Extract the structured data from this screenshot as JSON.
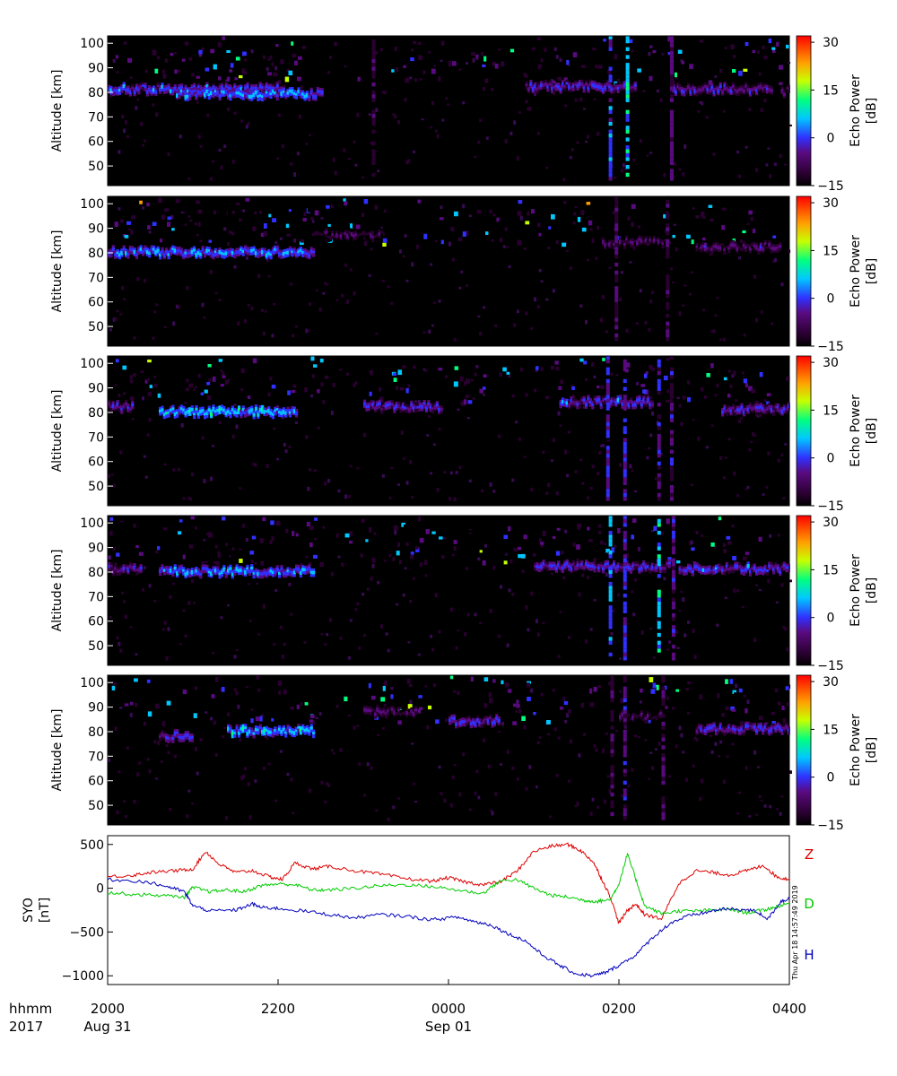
{
  "chart_data": [
    {
      "type": "heatmap",
      "panel": 1,
      "ylabel": "Altitude [km]",
      "yticks": [
        "100",
        "90",
        "80",
        "70",
        "60",
        "50"
      ],
      "ylim": [
        42,
        103
      ],
      "colorbar": {
        "label": "Echo Power [dB]",
        "ticks": [
          "30",
          "15",
          "0",
          "−15"
        ],
        "range": [
          -15,
          32
        ]
      },
      "bands": [
        {
          "t0": 0.0,
          "t1": 2.05,
          "alt": 81,
          "db": 5
        },
        {
          "t0": 0.8,
          "t1": 2.5,
          "alt": 79,
          "db": 8
        },
        {
          "t0": 4.9,
          "t1": 6.2,
          "alt": 82,
          "db": 2
        },
        {
          "t0": 6.6,
          "t1": 7.8,
          "alt": 81,
          "db": 0
        },
        {
          "t0": 7.9,
          "t1": 8.0,
          "alt": 80,
          "db": -2
        }
      ],
      "columns": [
        {
          "t": 5.88,
          "db": 6
        },
        {
          "t": 6.08,
          "db": 10
        },
        {
          "t": 6.6,
          "db": -2
        },
        {
          "t": 3.1,
          "db": -6
        }
      ]
    },
    {
      "type": "heatmap",
      "panel": 2,
      "ylabel": "Altitude [km]",
      "yticks": [
        "100",
        "90",
        "80",
        "70",
        "60",
        "50"
      ],
      "ylim": [
        42,
        103
      ],
      "colorbar": {
        "label": "Echo Power [dB]",
        "ticks": [
          "30",
          "15",
          "0",
          "−15"
        ],
        "range": [
          -15,
          32
        ]
      },
      "bands": [
        {
          "t0": 0.0,
          "t1": 2.4,
          "alt": 80,
          "db": 7
        },
        {
          "t0": 2.4,
          "t1": 3.2,
          "alt": 87,
          "db": -6
        },
        {
          "t0": 5.8,
          "t1": 6.6,
          "alt": 84,
          "db": -4
        },
        {
          "t0": 6.9,
          "t1": 7.9,
          "alt": 82,
          "db": -2
        }
      ],
      "columns": [
        {
          "t": 5.95,
          "db": -4
        },
        {
          "t": 6.55,
          "db": -6
        }
      ]
    },
    {
      "type": "heatmap",
      "panel": 3,
      "ylabel": "Altitude [km]",
      "yticks": [
        "100",
        "90",
        "80",
        "70",
        "60",
        "50"
      ],
      "ylim": [
        42,
        103
      ],
      "colorbar": {
        "label": "Echo Power [dB]",
        "ticks": [
          "30",
          "15",
          "0",
          "−15"
        ],
        "range": [
          -15,
          32
        ]
      },
      "bands": [
        {
          "t0": 0.0,
          "t1": 0.3,
          "alt": 82,
          "db": 2
        },
        {
          "t0": 0.6,
          "t1": 2.2,
          "alt": 80,
          "db": 10
        },
        {
          "t0": 3.0,
          "t1": 3.9,
          "alt": 82,
          "db": 2
        },
        {
          "t0": 5.3,
          "t1": 6.4,
          "alt": 84,
          "db": 4
        },
        {
          "t0": 7.2,
          "t1": 8.0,
          "alt": 81,
          "db": 2
        }
      ],
      "columns": [
        {
          "t": 5.85,
          "db": 2
        },
        {
          "t": 6.05,
          "db": 3
        },
        {
          "t": 6.45,
          "db": 0
        },
        {
          "t": 6.6,
          "db": -2
        }
      ]
    },
    {
      "type": "heatmap",
      "panel": 4,
      "ylabel": "Altitude [km]",
      "yticks": [
        "100",
        "90",
        "80",
        "70",
        "60",
        "50"
      ],
      "ylim": [
        42,
        103
      ],
      "colorbar": {
        "label": "Echo Power [dB]",
        "ticks": [
          "30",
          "15",
          "0",
          "−15"
        ],
        "range": [
          -15,
          32
        ]
      },
      "bands": [
        {
          "t0": 0.0,
          "t1": 0.4,
          "alt": 81,
          "db": 1
        },
        {
          "t0": 0.6,
          "t1": 2.4,
          "alt": 80,
          "db": 8
        },
        {
          "t0": 5.0,
          "t1": 6.6,
          "alt": 82,
          "db": 3
        },
        {
          "t0": 6.7,
          "t1": 8.0,
          "alt": 81,
          "db": 4
        }
      ],
      "columns": [
        {
          "t": 5.88,
          "db": 8
        },
        {
          "t": 6.05,
          "db": 3
        },
        {
          "t": 6.45,
          "db": 12
        },
        {
          "t": 6.62,
          "db": 0
        }
      ]
    },
    {
      "type": "heatmap",
      "panel": 5,
      "ylabel": "Altitude [km]",
      "yticks": [
        "100",
        "90",
        "80",
        "70",
        "60",
        "50"
      ],
      "ylim": [
        42,
        103
      ],
      "colorbar": {
        "label": "Echo Power [dB]",
        "ticks": [
          "30",
          "15",
          "0",
          "−15"
        ],
        "range": [
          -15,
          32
        ]
      },
      "bands": [
        {
          "t0": 0.6,
          "t1": 1.0,
          "alt": 78,
          "db": 3
        },
        {
          "t0": 1.4,
          "t1": 2.4,
          "alt": 80,
          "db": 10
        },
        {
          "t0": 3.0,
          "t1": 3.6,
          "alt": 88,
          "db": -2
        },
        {
          "t0": 4.0,
          "t1": 4.6,
          "alt": 84,
          "db": 2
        },
        {
          "t0": 6.0,
          "t1": 6.5,
          "alt": 86,
          "db": -5
        },
        {
          "t0": 6.9,
          "t1": 8.0,
          "alt": 81,
          "db": 2
        }
      ],
      "columns": [
        {
          "t": 5.9,
          "db": -4
        },
        {
          "t": 6.05,
          "db": 0
        },
        {
          "t": 6.5,
          "db": -4
        }
      ]
    },
    {
      "type": "line",
      "panel": 6,
      "ylabel": "SYO [nT]",
      "yticks": [
        "500",
        "0",
        "−500",
        "−1000"
      ],
      "ylim": [
        -1100,
        600
      ],
      "x_unit": "hours since 2017-08-31 2000 UT",
      "series": [
        {
          "name": "Z",
          "color": "#dd0000",
          "x": [
            0,
            0.3,
            0.5,
            0.8,
            1.0,
            1.15,
            1.3,
            1.5,
            1.7,
            1.9,
            2.05,
            2.2,
            2.4,
            2.6,
            2.9,
            3.2,
            3.5,
            3.8,
            4.0,
            4.2,
            4.4,
            4.6,
            4.8,
            5.0,
            5.2,
            5.4,
            5.55,
            5.7,
            5.8,
            5.9,
            6.0,
            6.1,
            6.2,
            6.3,
            6.5,
            6.7,
            6.9,
            7.1,
            7.3,
            7.5,
            7.7,
            7.85,
            8.0
          ],
          "y": [
            130,
            150,
            180,
            200,
            220,
            420,
            280,
            180,
            200,
            130,
            100,
            290,
            220,
            250,
            200,
            160,
            110,
            80,
            120,
            70,
            40,
            70,
            190,
            420,
            480,
            500,
            430,
            300,
            100,
            -100,
            -400,
            -250,
            -180,
            -300,
            -350,
            50,
            200,
            180,
            150,
            200,
            260,
            130,
            100
          ]
        },
        {
          "name": "D",
          "color": "#00cc00",
          "x": [
            0,
            0.3,
            0.6,
            0.9,
            1.0,
            1.2,
            1.4,
            1.6,
            1.8,
            2.0,
            2.2,
            2.4,
            2.6,
            2.9,
            3.2,
            3.5,
            3.8,
            4.1,
            4.4,
            4.6,
            4.8,
            5.0,
            5.2,
            5.4,
            5.6,
            5.75,
            5.9,
            6.0,
            6.1,
            6.2,
            6.3,
            6.5,
            6.7,
            6.9,
            7.1,
            7.3,
            7.5,
            7.7,
            7.85,
            8.0
          ],
          "y": [
            -50,
            -70,
            -80,
            -100,
            10,
            -40,
            -20,
            -40,
            30,
            50,
            40,
            -20,
            -20,
            0,
            30,
            40,
            20,
            -20,
            -60,
            80,
            100,
            0,
            -80,
            -100,
            -140,
            -150,
            -130,
            50,
            390,
            100,
            -200,
            -290,
            -260,
            -260,
            -250,
            -240,
            -280,
            -250,
            -210,
            -170
          ]
        },
        {
          "name": "H",
          "color": "#0000bb",
          "x": [
            0,
            0.4,
            0.7,
            0.9,
            1.0,
            1.2,
            1.5,
            1.7,
            1.8,
            2.0,
            2.3,
            2.6,
            2.9,
            3.2,
            3.5,
            3.8,
            4.1,
            4.3,
            4.5,
            4.7,
            4.9,
            5.1,
            5.3,
            5.5,
            5.7,
            5.85,
            6.0,
            6.2,
            6.4,
            6.6,
            6.8,
            7.0,
            7.2,
            7.4,
            7.6,
            7.75,
            7.9,
            8.0
          ],
          "y": [
            100,
            80,
            20,
            -40,
            -200,
            -260,
            -250,
            -180,
            -220,
            -230,
            -260,
            -300,
            -340,
            -300,
            -320,
            -360,
            -330,
            -380,
            -420,
            -520,
            -600,
            -760,
            -880,
            -980,
            -1000,
            -960,
            -880,
            -760,
            -560,
            -400,
            -320,
            -280,
            -240,
            -240,
            -260,
            -350,
            -150,
            -120
          ]
        }
      ]
    }
  ],
  "xaxis": {
    "row1_ticks": [
      "2000",
      "2200",
      "0000",
      "0200",
      "0400"
    ],
    "row2_ticks": [
      "Aug 31",
      "",
      "Sep 01",
      "",
      ""
    ],
    "row1_label": "hhmm",
    "row2_label": "2017"
  },
  "legend_labels": {
    "z": "Z",
    "d": "D",
    "h": "H"
  },
  "timestamp": "Thu Apr 18 14:57:49 2019",
  "colormap": [
    "#000000",
    "#2a0030",
    "#5a0a80",
    "#3030ff",
    "#00c8ff",
    "#00ff80",
    "#c8ff00",
    "#ffa000",
    "#ff0000"
  ]
}
